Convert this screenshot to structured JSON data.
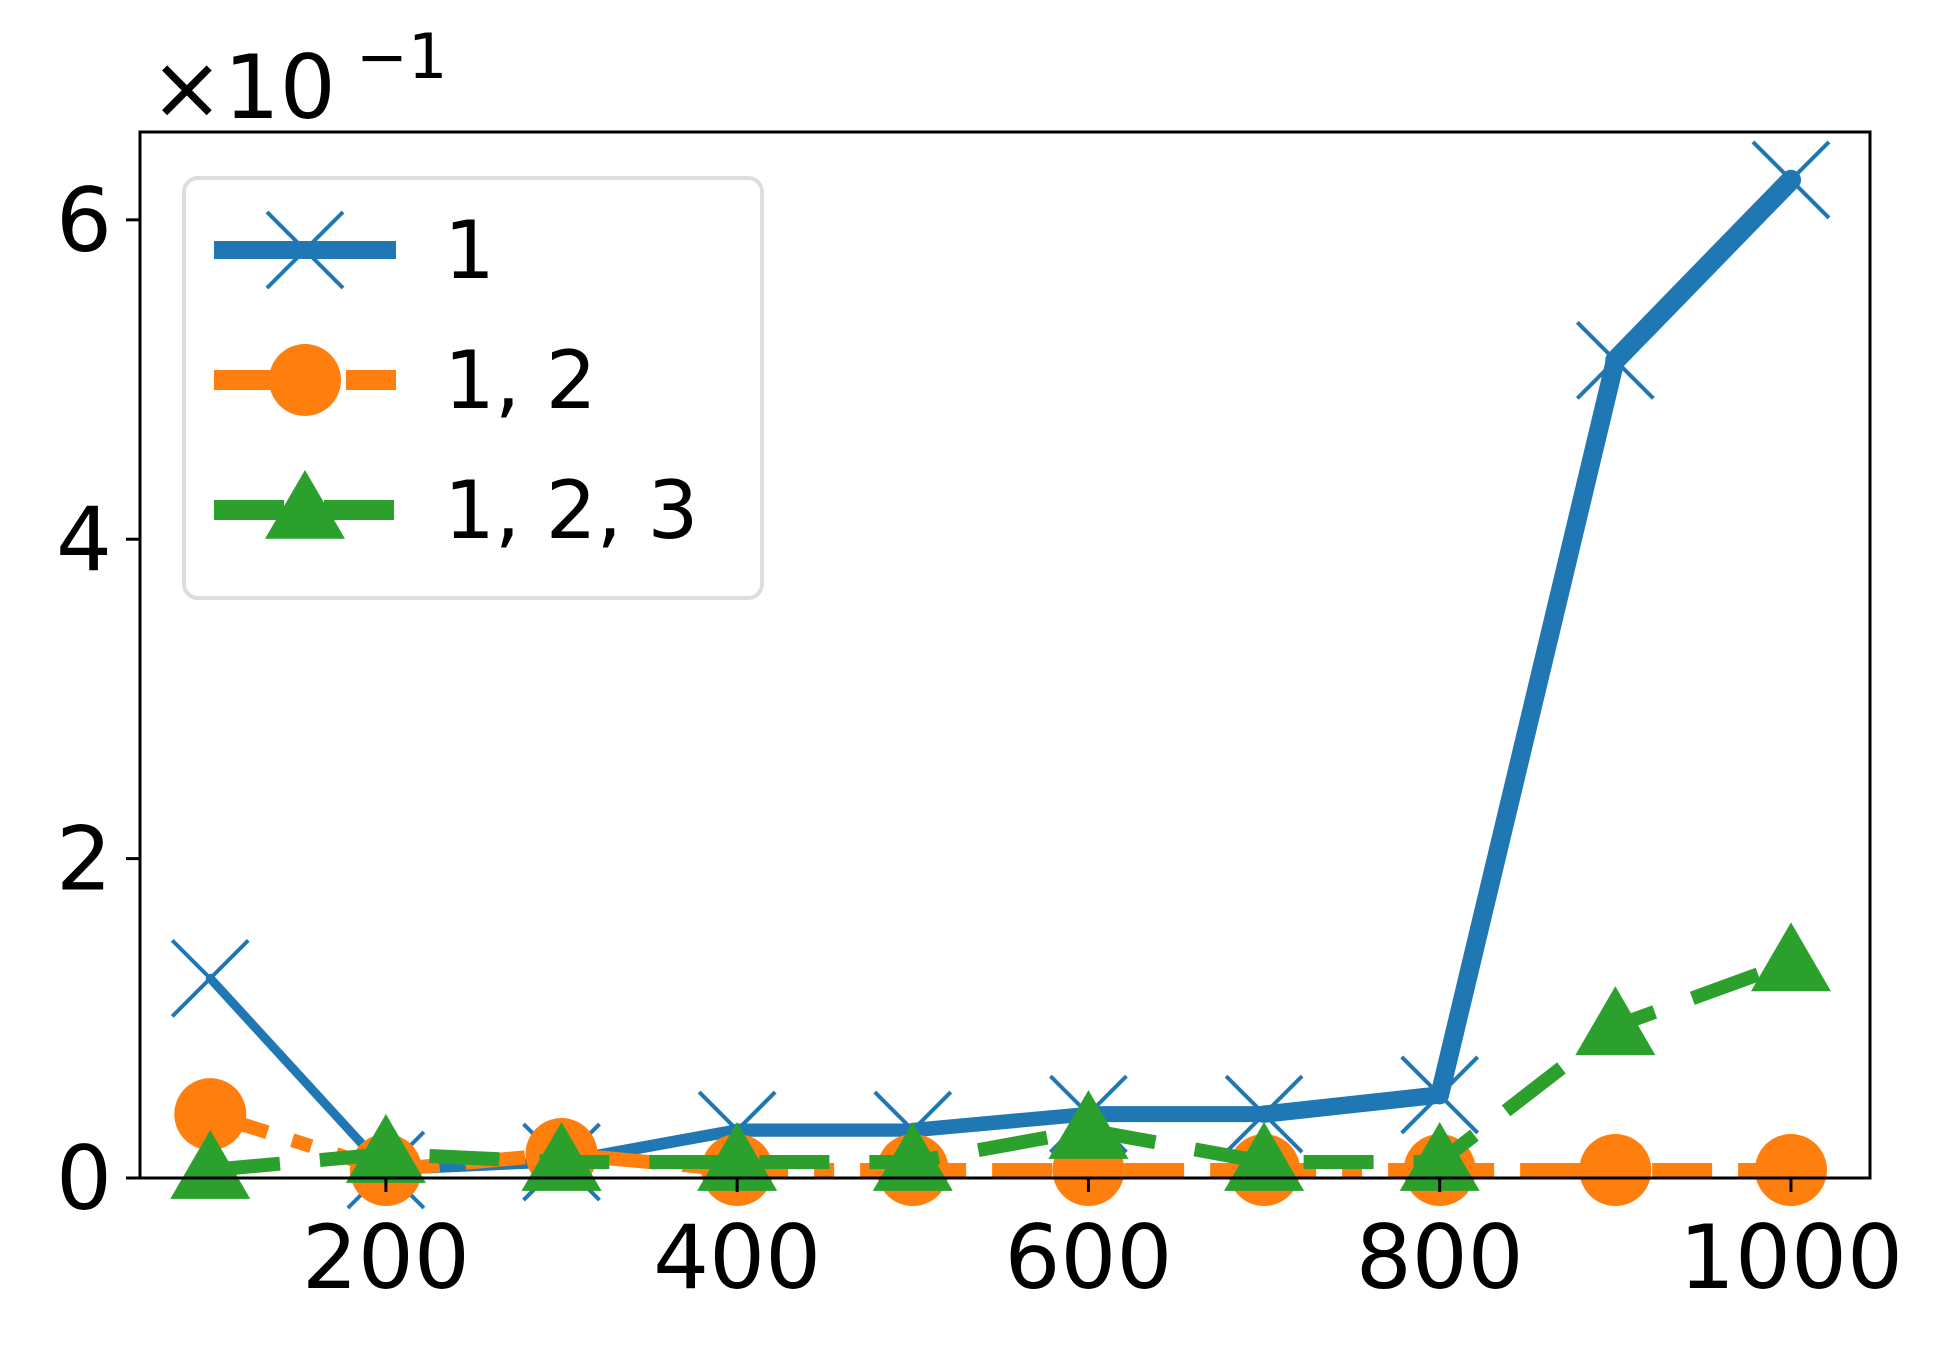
{
  "chart_data": {
    "type": "line",
    "title": "",
    "xlabel": "",
    "ylabel": "",
    "y_multiplier": {
      "base": "×10",
      "exponent": "−1"
    },
    "x": [
      100,
      200,
      300,
      400,
      500,
      600,
      700,
      800,
      900,
      1000
    ],
    "xlim": [
      60,
      1045
    ],
    "ylim": [
      0,
      6.55
    ],
    "xticks": [
      200,
      400,
      600,
      800,
      1000
    ],
    "xtick_labels": [
      "200",
      "400",
      "600",
      "800",
      "1000"
    ],
    "yticks": [
      0,
      2,
      4,
      6
    ],
    "ytick_labels": [
      "0",
      "2",
      "4",
      "6"
    ],
    "grid": false,
    "legend_position": "upper-left",
    "series": [
      {
        "name": "1",
        "color": "#1f77b4",
        "marker": "x",
        "linestyle": "solid-tapered",
        "values": [
          1.25,
          0.05,
          0.1,
          0.3,
          0.3,
          0.4,
          0.4,
          0.52,
          5.12,
          6.25
        ]
      },
      {
        "name": "1, 2",
        "color": "#ff7f0e",
        "marker": "circle",
        "linestyle": "dash-dot",
        "values": [
          0.4,
          0.05,
          0.15,
          0.05,
          0.05,
          0.05,
          0.05,
          0.05,
          0.05,
          0.05
        ]
      },
      {
        "name": "1, 2, 3",
        "color": "#2ca02c",
        "marker": "triangle",
        "linestyle": "dashed",
        "values": [
          0.05,
          0.15,
          0.1,
          0.1,
          0.1,
          0.3,
          0.1,
          0.1,
          0.95,
          1.35
        ]
      }
    ]
  }
}
